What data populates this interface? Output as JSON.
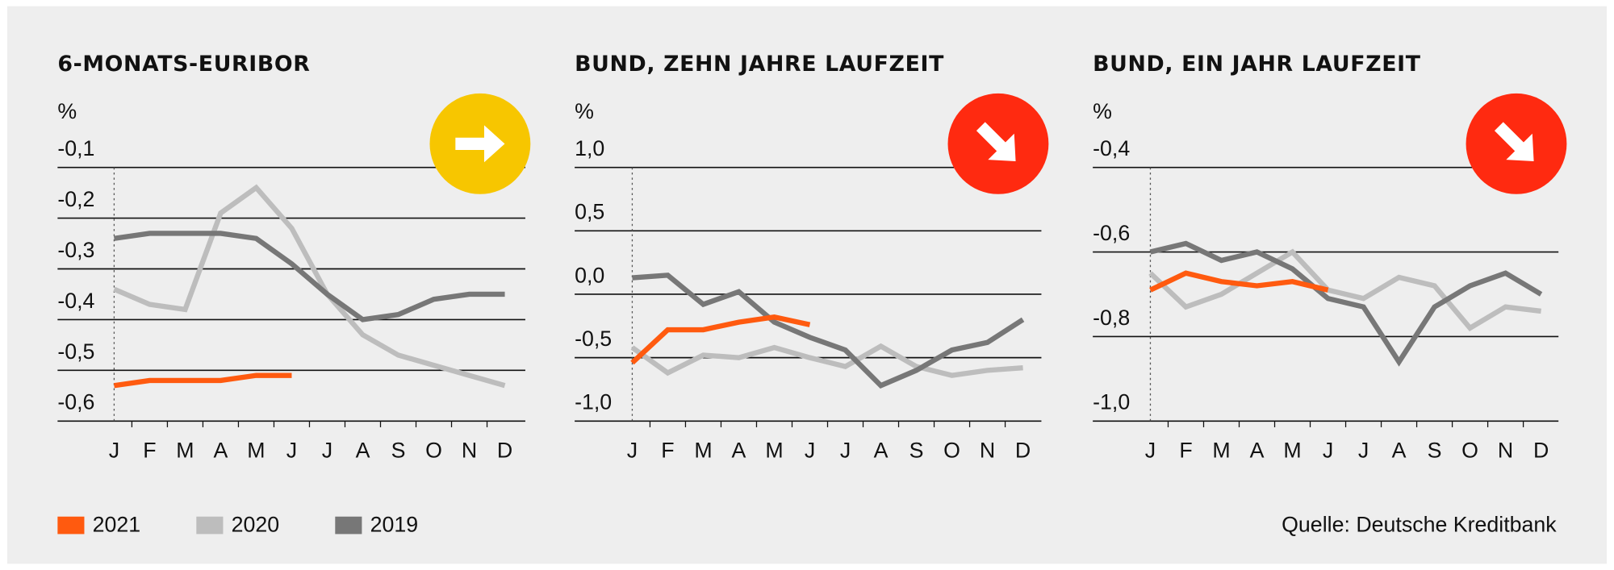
{
  "chart_data": [
    {
      "type": "line",
      "title": "6-MONATS-EURIBOR",
      "ylabel": "%",
      "categories": [
        "J",
        "F",
        "M",
        "A",
        "M",
        "J",
        "J",
        "A",
        "S",
        "O",
        "N",
        "D"
      ],
      "ylim": [
        -0.6,
        -0.1
      ],
      "yticks": [
        {
          "value": -0.1,
          "label": "-0,1"
        },
        {
          "value": -0.2,
          "label": "-0,2"
        },
        {
          "value": -0.3,
          "label": "-0,3"
        },
        {
          "value": -0.4,
          "label": "-0,4"
        },
        {
          "value": -0.5,
          "label": "-0,5"
        },
        {
          "value": -0.6,
          "label": "-0,6"
        }
      ],
      "series": [
        {
          "name": "2021",
          "color": "#ff5a0f",
          "values": [
            -0.53,
            -0.52,
            -0.52,
            -0.52,
            -0.51,
            -0.51,
            null,
            null,
            null,
            null,
            null,
            null
          ]
        },
        {
          "name": "2020",
          "color": "#bdbdbd",
          "values": [
            -0.34,
            -0.37,
            -0.38,
            -0.19,
            -0.14,
            -0.22,
            -0.35,
            -0.43,
            -0.47,
            -0.49,
            -0.51,
            -0.53
          ]
        },
        {
          "name": "2019",
          "color": "#777777",
          "values": [
            -0.24,
            -0.23,
            -0.23,
            -0.23,
            -0.24,
            -0.29,
            -0.35,
            -0.4,
            -0.39,
            -0.36,
            -0.35,
            -0.35
          ]
        }
      ]
    },
    {
      "type": "line",
      "title": "BUND, ZEHN JAHRE LAUFZEIT",
      "ylabel": "%",
      "categories": [
        "J",
        "F",
        "M",
        "A",
        "M",
        "J",
        "J",
        "A",
        "S",
        "O",
        "N",
        "D"
      ],
      "ylim": [
        -1.0,
        1.0
      ],
      "yticks": [
        {
          "value": 1.0,
          "label": "1,0"
        },
        {
          "value": 0.5,
          "label": "0,5"
        },
        {
          "value": 0.0,
          "label": "0,0"
        },
        {
          "value": -0.5,
          "label": "-0,5"
        },
        {
          "value": -1.0,
          "label": "-1,0"
        }
      ],
      "series": [
        {
          "name": "2021",
          "color": "#ff5a0f",
          "values": [
            -0.54,
            -0.28,
            -0.28,
            -0.22,
            -0.18,
            -0.24,
            null,
            null,
            null,
            null,
            null,
            null
          ]
        },
        {
          "name": "2020",
          "color": "#bdbdbd",
          "values": [
            -0.42,
            -0.62,
            -0.48,
            -0.5,
            -0.42,
            -0.5,
            -0.57,
            -0.41,
            -0.57,
            -0.64,
            -0.6,
            -0.58
          ]
        },
        {
          "name": "2019",
          "color": "#777777",
          "values": [
            0.13,
            0.15,
            -0.08,
            0.02,
            -0.22,
            -0.34,
            -0.44,
            -0.72,
            -0.6,
            -0.44,
            -0.38,
            -0.2
          ]
        }
      ]
    },
    {
      "type": "line",
      "title": "BUND, EIN JAHR LAUFZEIT",
      "ylabel": "%",
      "categories": [
        "J",
        "F",
        "M",
        "A",
        "M",
        "J",
        "J",
        "A",
        "S",
        "O",
        "N",
        "D"
      ],
      "ylim": [
        -1.0,
        -0.4
      ],
      "yticks": [
        {
          "value": -0.4,
          "label": "-0,4"
        },
        {
          "value": -0.6,
          "label": "-0,6"
        },
        {
          "value": -0.8,
          "label": "-0,8"
        },
        {
          "value": -1.0,
          "label": "-1,0"
        }
      ],
      "series": [
        {
          "name": "2021",
          "color": "#ff5a0f",
          "values": [
            -0.69,
            -0.65,
            -0.67,
            -0.68,
            -0.67,
            -0.69,
            null,
            null,
            null,
            null,
            null,
            null
          ]
        },
        {
          "name": "2020",
          "color": "#bdbdbd",
          "values": [
            -0.65,
            -0.73,
            -0.7,
            -0.65,
            -0.6,
            -0.69,
            -0.71,
            -0.66,
            -0.68,
            -0.78,
            -0.73,
            -0.74
          ]
        },
        {
          "name": "2019",
          "color": "#777777",
          "values": [
            -0.6,
            -0.58,
            -0.62,
            -0.6,
            -0.64,
            -0.71,
            -0.73,
            -0.86,
            -0.73,
            -0.68,
            -0.65,
            -0.7
          ]
        }
      ]
    }
  ],
  "source": "Quelle: Deutsche Kreditbank"
}
